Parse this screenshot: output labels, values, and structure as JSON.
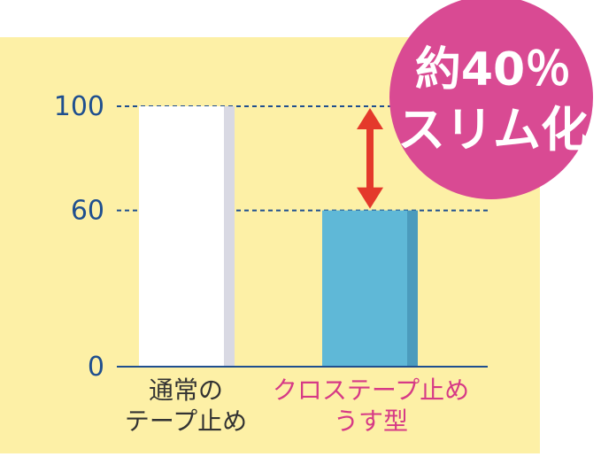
{
  "chart_data": {
    "type": "bar",
    "categories": [
      {
        "lines": [
          "通常の",
          "テープ止め"
        ],
        "color": "#333333"
      },
      {
        "lines": [
          "クロステープ止め",
          "うす型"
        ],
        "color": "#d63a86"
      }
    ],
    "values": [
      100,
      60
    ],
    "bar_colors": [
      "#ffffff",
      "#5fb8d7"
    ],
    "bar_shadow_colors": [
      "#d9d9e3",
      "#4b9bbd"
    ],
    "y_ticks": [
      0,
      60,
      100
    ],
    "ylim": [
      0,
      100
    ],
    "background_color": "#fdf0a6",
    "axis_color": "#1f4f8f",
    "arrow_color": "#e4392b",
    "badge": {
      "line1": "約40％",
      "line2": "スリム化",
      "color": "#d94a93"
    }
  }
}
